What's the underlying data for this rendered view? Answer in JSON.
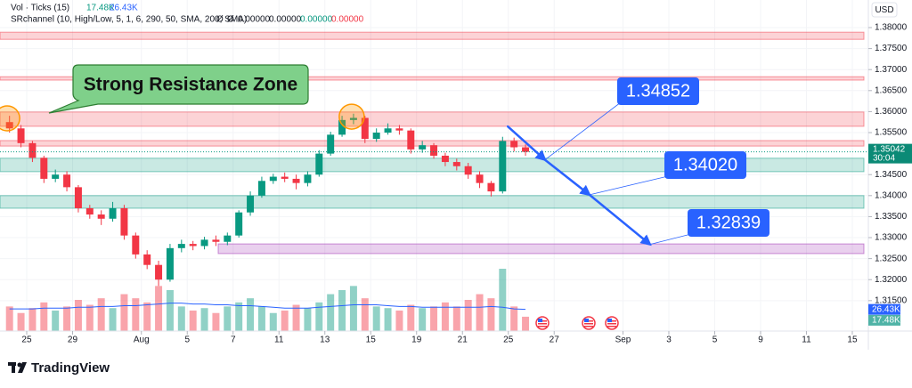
{
  "chart_data": {
    "type": "candlestick",
    "volume_name": "Vol · Ticks (15)",
    "volume_last_label": "17.48K",
    "ma_last_label": "26.43K",
    "srchannel_name": "SRchannel (10, High/Low, 5, 1, 6, 290, 50, SMA, 200, SMA)",
    "srchannel_values": [
      "Ø",
      "Ø",
      "0.00000",
      "0.00000",
      "0.00000",
      "0.00000"
    ],
    "srchannel_colors": [
      "#131722",
      "#131722",
      "#131722",
      "#131722",
      "#089981",
      "#f23645"
    ],
    "currency": "USD",
    "countdown": "30:04",
    "brand": "TradingView",
    "callout": "Strong Resistance Zone",
    "grid": true,
    "up_color": "#089981",
    "down_color": "#f23645",
    "xlim": [
      -1.165,
      36.7
    ],
    "ylim": [
      1.30776,
      1.38487
    ],
    "xticks": [
      {
        "value": 0,
        "label": "25"
      },
      {
        "value": 2,
        "label": "29"
      },
      {
        "value": 5,
        "label": "Aug"
      },
      {
        "value": 7,
        "label": "5"
      },
      {
        "value": 9,
        "label": "7"
      },
      {
        "value": 11,
        "label": "11"
      },
      {
        "value": 13,
        "label": "13"
      },
      {
        "value": 15,
        "label": "15"
      },
      {
        "value": 17,
        "label": "19"
      },
      {
        "value": 19,
        "label": "21"
      },
      {
        "value": 21,
        "label": "25"
      },
      {
        "value": 23,
        "label": "27"
      },
      {
        "value": 26,
        "label": "Sep"
      },
      {
        "value": 28,
        "label": "3"
      },
      {
        "value": 30,
        "label": "5"
      },
      {
        "value": 32,
        "label": "9"
      },
      {
        "value": 34,
        "label": "11"
      },
      {
        "value": 36,
        "label": "15"
      }
    ],
    "yticks": [
      {
        "value": 1.38,
        "label": "1.38000"
      },
      {
        "value": 1.375,
        "label": "1.37500"
      },
      {
        "value": 1.37,
        "label": "1.37000"
      },
      {
        "value": 1.365,
        "label": "1.36500"
      },
      {
        "value": 1.36,
        "label": "1.36000"
      },
      {
        "value": 1.355,
        "label": "1.35500"
      },
      {
        "value": 1.345,
        "label": "1.34500"
      },
      {
        "value": 1.34,
        "label": "1.34000"
      },
      {
        "value": 1.335,
        "label": "1.33500"
      },
      {
        "value": 1.33,
        "label": "1.33000"
      },
      {
        "value": 1.325,
        "label": "1.32500"
      },
      {
        "value": 1.32,
        "label": "1.32000"
      },
      {
        "value": 1.315,
        "label": "1.31500"
      }
    ],
    "x": [
      -0.75,
      -0.25,
      0.25,
      0.75,
      1.25,
      1.75,
      2.25,
      2.75,
      3.25,
      3.75,
      4.25,
      4.75,
      5.25,
      5.75,
      6.25,
      6.75,
      7.25,
      7.75,
      8.25,
      8.75,
      9.25,
      9.75,
      10.25,
      10.75,
      11.25,
      11.75,
      12.25,
      12.75,
      13.25,
      13.75,
      14.25,
      14.75,
      15.25,
      15.75,
      16.25,
      16.75,
      17.25,
      17.75,
      18.25,
      18.75,
      19.25,
      19.75,
      20.25,
      20.75,
      21.25,
      21.75
    ],
    "opens": [
      1.3575,
      1.356,
      1.3525,
      1.349,
      1.344,
      1.345,
      1.342,
      1.337,
      1.3355,
      1.3345,
      1.337,
      1.3305,
      1.326,
      1.3235,
      1.32,
      1.3275,
      1.3285,
      1.328,
      1.3295,
      1.329,
      1.3305,
      1.336,
      1.34,
      1.3435,
      1.3445,
      1.344,
      1.343,
      1.345,
      1.35,
      1.3545,
      1.358,
      1.3585,
      1.3535,
      1.355,
      1.356,
      1.3555,
      1.351,
      1.352,
      1.3495,
      1.348,
      1.347,
      1.345,
      1.343,
      1.341,
      1.353,
      1.3515
    ],
    "highs": [
      1.359,
      1.3568,
      1.353,
      1.3495,
      1.3462,
      1.3458,
      1.3425,
      1.3378,
      1.3365,
      1.3385,
      1.3378,
      1.3312,
      1.327,
      1.3245,
      1.3285,
      1.3295,
      1.3292,
      1.3302,
      1.3305,
      1.3312,
      1.3365,
      1.341,
      1.3445,
      1.3452,
      1.3455,
      1.345,
      1.3458,
      1.3508,
      1.3552,
      1.359,
      1.3595,
      1.359,
      1.356,
      1.3572,
      1.3568,
      1.356,
      1.353,
      1.3525,
      1.3502,
      1.3488,
      1.3478,
      1.3458,
      1.3435,
      1.354,
      1.3538,
      1.3522
    ],
    "lows": [
      1.355,
      1.3515,
      1.348,
      1.343,
      1.3432,
      1.341,
      1.336,
      1.3345,
      1.333,
      1.3338,
      1.3295,
      1.325,
      1.3225,
      1.3185,
      1.3195,
      1.3265,
      1.327,
      1.3272,
      1.328,
      1.3282,
      1.33,
      1.3352,
      1.3395,
      1.3428,
      1.3432,
      1.3415,
      1.3422,
      1.3445,
      1.3495,
      1.354,
      1.357,
      1.3525,
      1.3528,
      1.3545,
      1.3545,
      1.35,
      1.3502,
      1.3488,
      1.347,
      1.346,
      1.344,
      1.3418,
      1.3398,
      1.3405,
      1.3505,
      1.3495
    ],
    "closes": [
      1.356,
      1.3525,
      1.349,
      1.344,
      1.345,
      1.342,
      1.337,
      1.3355,
      1.3345,
      1.337,
      1.3305,
      1.326,
      1.3235,
      1.32,
      1.3275,
      1.3285,
      1.328,
      1.3295,
      1.329,
      1.3305,
      1.336,
      1.34,
      1.3435,
      1.3445,
      1.344,
      1.343,
      1.345,
      1.35,
      1.3545,
      1.358,
      1.3585,
      1.3535,
      1.355,
      1.356,
      1.3555,
      1.351,
      1.352,
      1.3495,
      1.348,
      1.347,
      1.345,
      1.343,
      1.341,
      1.353,
      1.3515,
      1.35042
    ],
    "volumes": [
      30,
      22,
      28,
      35,
      25,
      30,
      38,
      32,
      40,
      28,
      45,
      40,
      35,
      55,
      50,
      30,
      25,
      28,
      22,
      30,
      35,
      40,
      30,
      22,
      25,
      32,
      28,
      35,
      45,
      50,
      55,
      40,
      30,
      28,
      25,
      32,
      28,
      30,
      35,
      30,
      38,
      45,
      40,
      76,
      30,
      17.48
    ],
    "volume_ma": [
      27,
      27,
      27,
      28,
      28,
      28,
      29,
      29,
      30,
      30,
      31,
      31,
      32,
      33,
      34,
      34,
      33,
      33,
      32,
      32,
      31,
      31,
      30,
      29,
      28,
      28,
      28,
      29,
      30,
      31,
      32,
      32,
      32,
      31,
      30,
      30,
      29,
      29,
      29,
      29,
      29,
      29,
      30,
      29,
      27,
      26.43
    ],
    "ma_color": "#2962ff",
    "zones": [
      {
        "from": 1.3789,
        "to": 1.3772,
        "color": "#f23645",
        "x_start": -1.165
      },
      {
        "from": 1.3683,
        "to": 1.3675,
        "color": "#f23645",
        "x_start": -1.165
      },
      {
        "from": 1.3599,
        "to": 1.3565,
        "color": "#f23645",
        "x_start": -1.165
      },
      {
        "from": 1.3531,
        "to": 1.3518,
        "color": "#f23645",
        "x_start": -1.165
      },
      {
        "from": 1.3489,
        "to": 1.3457,
        "color": "#089981",
        "x_start": -1.165
      },
      {
        "from": 1.34,
        "to": 1.337,
        "color": "#089981",
        "x_start": -1.165
      },
      {
        "from": 1.3285,
        "to": 1.3262,
        "color": "#9c27b0",
        "x_start": 8.35
      }
    ],
    "highlights": {
      "x": [
        -0.85,
        14.17
      ],
      "values": [
        1.3584,
        1.3588
      ]
    },
    "arrow_start": {
      "x": 20.97,
      "value": 1.3565
    },
    "targets": {
      "x": [
        22.6,
        24.54,
        27.18
      ],
      "values": [
        1.34852,
        1.3402,
        1.32839
      ],
      "value_labels": [
        "1.34852",
        "1.34020",
        "1.32839"
      ]
    }
  }
}
